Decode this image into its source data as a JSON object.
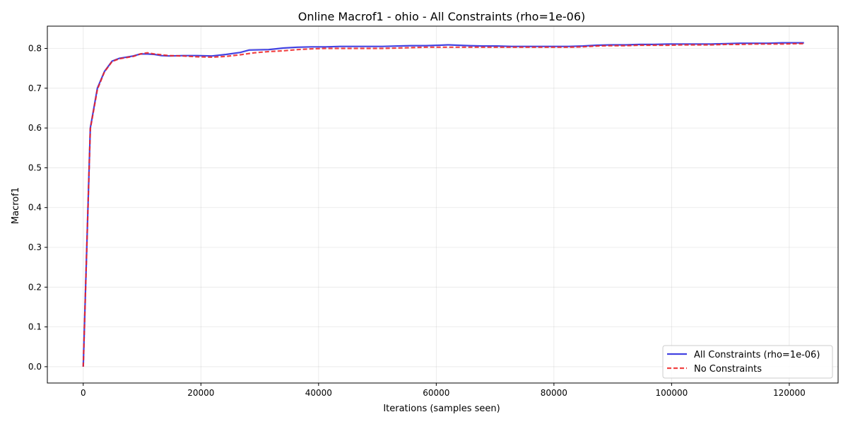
{
  "chart_data": {
    "type": "line",
    "title": "Online Macrof1 - ohio - All Constraints (rho=1e-06)",
    "xlabel": "Iterations (samples seen)",
    "ylabel": "Macrof1",
    "xlim": [
      -6100,
      128300
    ],
    "ylim": [
      -0.041,
      0.856
    ],
    "xticks": [
      0,
      20000,
      40000,
      60000,
      80000,
      100000,
      120000
    ],
    "xtick_labels": [
      "0",
      "20000",
      "40000",
      "60000",
      "80000",
      "100000",
      "120000"
    ],
    "yticks": [
      0.0,
      0.1,
      0.2,
      0.3,
      0.4,
      0.5,
      0.6,
      0.7,
      0.8
    ],
    "ytick_labels": [
      "0.0",
      "0.1",
      "0.2",
      "0.3",
      "0.4",
      "0.5",
      "0.6",
      "0.7",
      "0.8"
    ],
    "grid": true,
    "legend_position": "lower-right",
    "series": [
      {
        "name": "All Constraints (rho=1e-06)",
        "color": "#2222dd",
        "style": "solid",
        "x": [
          0,
          1200,
          2400,
          3600,
          4900,
          6100,
          7300,
          8500,
          9700,
          10900,
          12100,
          13300,
          14600,
          17000,
          19400,
          21900,
          24300,
          26700,
          28200,
          31500,
          34000,
          36400,
          38800,
          41200,
          43700,
          46100,
          48500,
          50900,
          53400,
          55800,
          58200,
          60600,
          62000,
          65500,
          67900,
          70300,
          72800,
          75200,
          77600,
          80000,
          82500,
          84900,
          87300,
          89700,
          92200,
          94600,
          97000,
          99400,
          101900,
          104300,
          106700,
          109100,
          111600,
          114000,
          116400,
          118800,
          121300,
          122500
        ],
        "y": [
          0.0,
          0.6,
          0.7,
          0.742,
          0.768,
          0.775,
          0.778,
          0.781,
          0.786,
          0.786,
          0.785,
          0.782,
          0.781,
          0.782,
          0.782,
          0.781,
          0.785,
          0.79,
          0.796,
          0.797,
          0.801,
          0.803,
          0.804,
          0.804,
          0.805,
          0.805,
          0.805,
          0.805,
          0.806,
          0.807,
          0.807,
          0.808,
          0.809,
          0.807,
          0.806,
          0.806,
          0.805,
          0.805,
          0.805,
          0.805,
          0.805,
          0.806,
          0.808,
          0.809,
          0.809,
          0.81,
          0.81,
          0.811,
          0.811,
          0.811,
          0.811,
          0.812,
          0.813,
          0.813,
          0.813,
          0.814,
          0.814,
          0.814
        ]
      },
      {
        "name": "No Constraints",
        "color": "#ee2222",
        "style": "dashed",
        "x": [
          0,
          1200,
          2400,
          3600,
          4900,
          6100,
          7300,
          8500,
          9700,
          10900,
          12100,
          13300,
          14600,
          17000,
          19400,
          21900,
          24300,
          26700,
          29100,
          31500,
          34000,
          36400,
          38800,
          41200,
          43700,
          46100,
          48500,
          50900,
          53400,
          55800,
          58200,
          60600,
          63100,
          65500,
          67900,
          70300,
          72800,
          75200,
          77600,
          80000,
          82500,
          84900,
          87300,
          89700,
          92200,
          94600,
          97000,
          99400,
          101900,
          104300,
          106700,
          109100,
          111600,
          114000,
          116400,
          118800,
          121300,
          122500
        ],
        "y": [
          0.0,
          0.598,
          0.697,
          0.741,
          0.767,
          0.774,
          0.777,
          0.78,
          0.786,
          0.789,
          0.786,
          0.784,
          0.782,
          0.781,
          0.779,
          0.778,
          0.78,
          0.784,
          0.789,
          0.792,
          0.794,
          0.797,
          0.799,
          0.8,
          0.8,
          0.8,
          0.8,
          0.8,
          0.801,
          0.802,
          0.803,
          0.803,
          0.803,
          0.803,
          0.803,
          0.803,
          0.803,
          0.803,
          0.803,
          0.803,
          0.803,
          0.804,
          0.806,
          0.807,
          0.807,
          0.808,
          0.808,
          0.808,
          0.809,
          0.809,
          0.809,
          0.81,
          0.81,
          0.811,
          0.811,
          0.811,
          0.812,
          0.812
        ]
      }
    ]
  }
}
